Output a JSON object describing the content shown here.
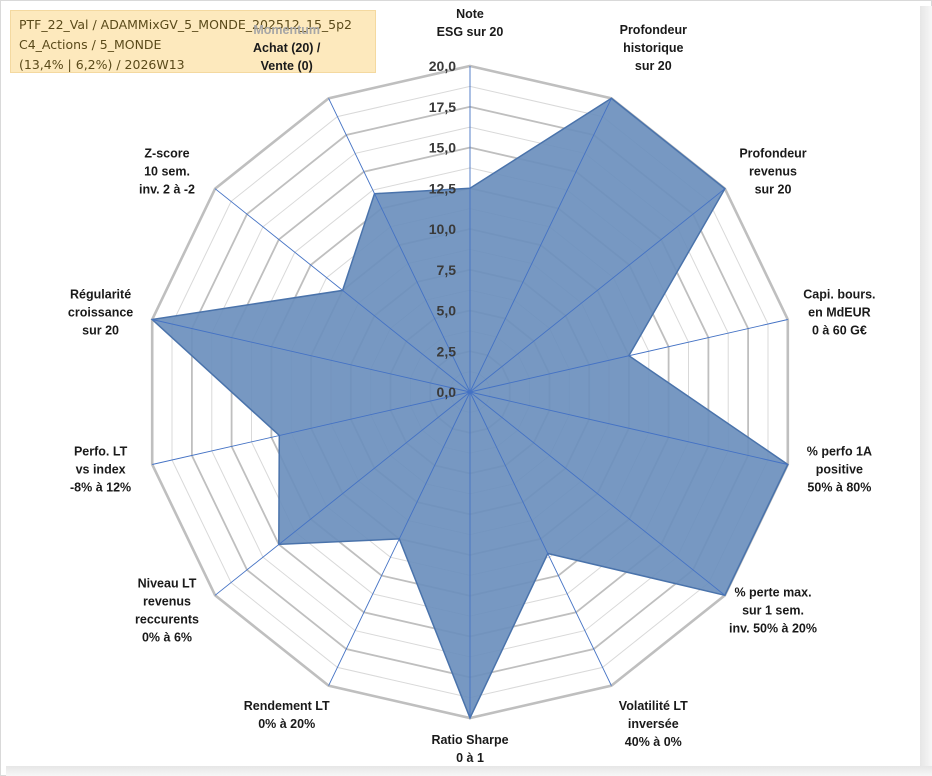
{
  "header": {
    "line1": "PTF_22_Val / ADAMMixGV_5_MONDE_202512_15_5p2",
    "line2": "C4_Actions / 5_MONDE",
    "line3": "(13,4% | 6,2%) / 2026W13"
  },
  "chart_data": {
    "type": "radar",
    "rlim": [
      0,
      20
    ],
    "ticks": [
      "0,0",
      "2,5",
      "5,0",
      "7,5",
      "10,0",
      "12,5",
      "15,0",
      "17,5",
      "20,0"
    ],
    "axes": [
      {
        "label": [
          "Note",
          "ESG sur 20"
        ],
        "value": 12.5
      },
      {
        "label": [
          "Profondeur",
          "historique",
          "sur 20"
        ],
        "value": 20
      },
      {
        "label": [
          "Profondeur",
          "revenus",
          "sur 20"
        ],
        "value": 20
      },
      {
        "label": [
          "Capi. bours.",
          "en MdEUR",
          "0 à 60 G€"
        ],
        "value": 10
      },
      {
        "label": [
          "% perfo 1A",
          "positive",
          "50% à 80%"
        ],
        "value": 20
      },
      {
        "label": [
          "% perte max.",
          "sur 1 sem.",
          "inv. 50% à 20%"
        ],
        "value": 20
      },
      {
        "label": [
          "Volatilité LT",
          "inversée",
          "40% à 0%"
        ],
        "value": 11
      },
      {
        "label": [
          "Ratio Sharpe",
          "0 à 1"
        ],
        "value": 20
      },
      {
        "label": [
          "Rendement LT",
          "0% à 20%"
        ],
        "value": 10
      },
      {
        "label": [
          "Niveau LT",
          "revenus",
          "reccurents",
          "0% à 6%"
        ],
        "value": 15
      },
      {
        "label": [
          "Perfo. LT",
          "vs index",
          "-8% à 12%"
        ],
        "value": 12
      },
      {
        "label": [
          "Régularité",
          "croissance",
          "sur 20"
        ],
        "value": 20
      },
      {
        "label": [
          "Z-score",
          "10 sem.",
          "inv. 2 à -2"
        ],
        "value": 10
      },
      {
        "label": [
          "Momentum",
          "Achat (20) /",
          "Vente (0)"
        ],
        "value": 13.5,
        "first_line_muted": true
      }
    ],
    "series": [
      {
        "color": "#5b82b5"
      }
    ],
    "grid": true,
    "colors": {
      "fill": "#6b8fbd",
      "stroke": "#4a73ab",
      "grid_major": "#bfbfbf",
      "grid_minor": "#d9d9d9",
      "spoke": "#4472c4"
    }
  }
}
